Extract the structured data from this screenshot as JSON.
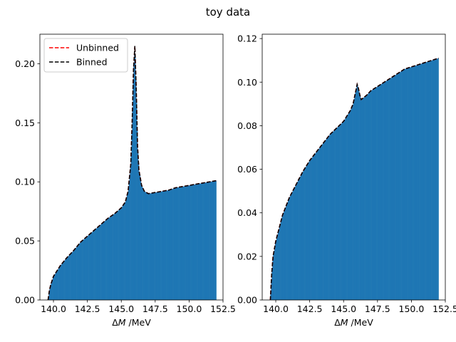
{
  "figure": {
    "title": "toy data"
  },
  "chart_data": [
    {
      "type": "bar",
      "xlabel": "ΔM /MeV",
      "ylabel": "",
      "xlim": [
        139.0,
        152.5
      ],
      "ylim": [
        0.0,
        0.225
      ],
      "xticks": [
        "140.0",
        "142.5",
        "145.0",
        "147.5",
        "150.0",
        "152.5"
      ],
      "yticks": [
        "0.00",
        "0.05",
        "0.10",
        "0.15",
        "0.20"
      ],
      "grid": false,
      "legend": {
        "position": "top-left",
        "entries": [
          "Unbinned",
          "Binned"
        ]
      },
      "histogram": {
        "color": "#1f77b4",
        "x": [
          139.6,
          139.7,
          139.8,
          140.0,
          140.5,
          141.0,
          141.5,
          142.0,
          142.5,
          143.0,
          143.5,
          144.0,
          144.5,
          145.0,
          145.3,
          145.5,
          145.7,
          145.8,
          145.9,
          146.0,
          146.1,
          146.2,
          146.3,
          146.5,
          146.7,
          147.0,
          147.5,
          148.0,
          148.5,
          149.0,
          149.5,
          150.0,
          150.5,
          151.0,
          151.5,
          152.0
        ],
        "values": [
          0.0,
          0.008,
          0.013,
          0.02,
          0.029,
          0.036,
          0.042,
          0.049,
          0.054,
          0.059,
          0.064,
          0.069,
          0.073,
          0.078,
          0.083,
          0.092,
          0.115,
          0.15,
          0.195,
          0.215,
          0.18,
          0.13,
          0.11,
          0.097,
          0.092,
          0.09,
          0.091,
          0.092,
          0.093,
          0.095,
          0.096,
          0.097,
          0.098,
          0.099,
          0.1,
          0.101
        ]
      },
      "series": [
        {
          "name": "Unbinned",
          "color": "#ff0000",
          "style": "dashed",
          "x": [
            139.6,
            139.7,
            139.8,
            140.0,
            140.5,
            141.0,
            141.5,
            142.0,
            142.5,
            143.0,
            143.5,
            144.0,
            144.5,
            145.0,
            145.3,
            145.5,
            145.7,
            145.8,
            145.9,
            146.0,
            146.1,
            146.2,
            146.3,
            146.5,
            146.7,
            147.0,
            147.5,
            148.0,
            148.5,
            149.0,
            149.5,
            150.0,
            150.5,
            151.0,
            151.5,
            152.0
          ],
          "y": [
            0.0,
            0.008,
            0.013,
            0.02,
            0.029,
            0.036,
            0.042,
            0.049,
            0.054,
            0.059,
            0.064,
            0.069,
            0.073,
            0.078,
            0.083,
            0.092,
            0.115,
            0.15,
            0.195,
            0.215,
            0.18,
            0.13,
            0.11,
            0.097,
            0.092,
            0.09,
            0.091,
            0.092,
            0.093,
            0.095,
            0.096,
            0.097,
            0.098,
            0.099,
            0.1,
            0.101
          ]
        },
        {
          "name": "Binned",
          "color": "#000000",
          "style": "dashed",
          "x": [
            139.6,
            139.7,
            139.8,
            140.0,
            140.5,
            141.0,
            141.5,
            142.0,
            142.5,
            143.0,
            143.5,
            144.0,
            144.5,
            145.0,
            145.3,
            145.5,
            145.7,
            145.8,
            145.9,
            146.0,
            146.1,
            146.2,
            146.3,
            146.5,
            146.7,
            147.0,
            147.5,
            148.0,
            148.5,
            149.0,
            149.5,
            150.0,
            150.5,
            151.0,
            151.5,
            152.0
          ],
          "y": [
            0.0,
            0.008,
            0.013,
            0.02,
            0.029,
            0.036,
            0.042,
            0.049,
            0.054,
            0.059,
            0.064,
            0.069,
            0.073,
            0.078,
            0.083,
            0.092,
            0.115,
            0.15,
            0.195,
            0.215,
            0.18,
            0.13,
            0.11,
            0.097,
            0.092,
            0.09,
            0.091,
            0.092,
            0.093,
            0.095,
            0.096,
            0.097,
            0.098,
            0.099,
            0.1,
            0.101
          ]
        }
      ]
    },
    {
      "type": "bar",
      "xlabel": "ΔM /MeV",
      "ylabel": "",
      "xlim": [
        139.0,
        152.5
      ],
      "ylim": [
        0.0,
        0.122
      ],
      "xticks": [
        "140.0",
        "142.5",
        "145.0",
        "147.5",
        "150.0",
        "152.5"
      ],
      "yticks": [
        "0.00",
        "0.02",
        "0.04",
        "0.06",
        "0.08",
        "0.10",
        "0.12"
      ],
      "grid": false,
      "histogram": {
        "color": "#1f77b4",
        "x": [
          139.6,
          139.7,
          139.8,
          140.0,
          140.5,
          141.0,
          141.5,
          142.0,
          142.5,
          143.0,
          143.5,
          144.0,
          144.5,
          145.0,
          145.3,
          145.5,
          145.7,
          145.8,
          145.9,
          146.0,
          146.1,
          146.2,
          146.3,
          146.5,
          146.7,
          147.0,
          147.5,
          148.0,
          148.5,
          149.0,
          149.5,
          150.0,
          150.5,
          151.0,
          151.5,
          152.0
        ],
        "values": [
          0.0,
          0.012,
          0.02,
          0.027,
          0.039,
          0.047,
          0.053,
          0.059,
          0.064,
          0.068,
          0.072,
          0.076,
          0.079,
          0.082,
          0.085,
          0.087,
          0.09,
          0.093,
          0.096,
          0.099,
          0.097,
          0.094,
          0.092,
          0.093,
          0.094,
          0.096,
          0.098,
          0.1,
          0.102,
          0.104,
          0.106,
          0.107,
          0.108,
          0.109,
          0.11,
          0.111
        ]
      },
      "series": [
        {
          "name": "Unbinned",
          "color": "#ff0000",
          "style": "dashed",
          "x": [
            139.6,
            139.7,
            139.8,
            140.0,
            140.5,
            141.0,
            141.5,
            142.0,
            142.5,
            143.0,
            143.5,
            144.0,
            144.5,
            145.0,
            145.3,
            145.5,
            145.7,
            145.8,
            145.9,
            146.0,
            146.1,
            146.2,
            146.3,
            146.5,
            146.7,
            147.0,
            147.5,
            148.0,
            148.5,
            149.0,
            149.5,
            150.0,
            150.5,
            151.0,
            151.5,
            152.0
          ],
          "y": [
            0.0,
            0.012,
            0.02,
            0.027,
            0.039,
            0.047,
            0.053,
            0.059,
            0.064,
            0.068,
            0.072,
            0.076,
            0.079,
            0.082,
            0.085,
            0.087,
            0.09,
            0.093,
            0.096,
            0.099,
            0.097,
            0.094,
            0.092,
            0.093,
            0.094,
            0.096,
            0.098,
            0.1,
            0.102,
            0.104,
            0.106,
            0.107,
            0.108,
            0.109,
            0.11,
            0.111
          ]
        },
        {
          "name": "Binned",
          "color": "#000000",
          "style": "dashed",
          "x": [
            139.6,
            139.7,
            139.8,
            140.0,
            140.5,
            141.0,
            141.5,
            142.0,
            142.5,
            143.0,
            143.5,
            144.0,
            144.5,
            145.0,
            145.3,
            145.5,
            145.7,
            145.8,
            145.9,
            146.0,
            146.1,
            146.2,
            146.3,
            146.5,
            146.7,
            147.0,
            147.5,
            148.0,
            148.5,
            149.0,
            149.5,
            150.0,
            150.5,
            151.0,
            151.5,
            152.0
          ],
          "y": [
            0.0,
            0.012,
            0.02,
            0.027,
            0.039,
            0.047,
            0.053,
            0.059,
            0.064,
            0.068,
            0.072,
            0.076,
            0.079,
            0.082,
            0.085,
            0.087,
            0.09,
            0.093,
            0.096,
            0.099,
            0.097,
            0.094,
            0.092,
            0.093,
            0.094,
            0.096,
            0.098,
            0.1,
            0.102,
            0.104,
            0.106,
            0.107,
            0.108,
            0.109,
            0.11,
            0.111
          ]
        }
      ]
    }
  ]
}
